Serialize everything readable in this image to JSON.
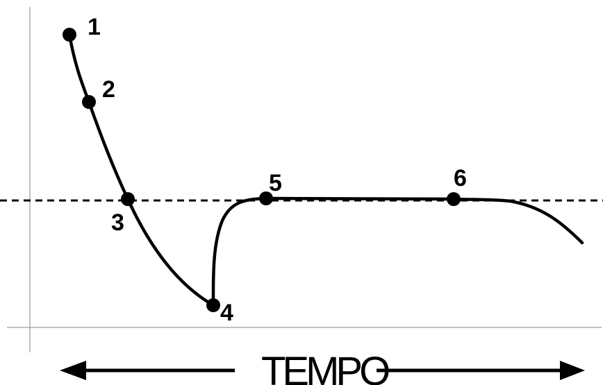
{
  "diagram": {
    "points": [
      {
        "label": "1"
      },
      {
        "label": "2"
      },
      {
        "label": "3"
      },
      {
        "label": "4"
      },
      {
        "label": "5"
      },
      {
        "label": "6"
      }
    ],
    "axis_title": "TEMPO"
  }
}
